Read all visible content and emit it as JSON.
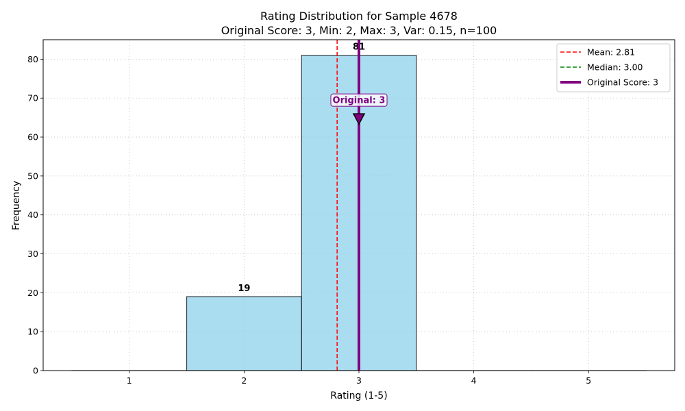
{
  "chart_data": {
    "type": "bar",
    "title": "Rating Distribution for Sample 4678",
    "subtitle": "Original Score: 3, Min: 2, Max: 3, Var: 0.15, n=100",
    "xlabel": "Rating (1-5)",
    "ylabel": "Frequency",
    "categories": [
      1,
      2,
      3,
      4,
      5
    ],
    "values": [
      0,
      19,
      81,
      0,
      0
    ],
    "bar_labels": [
      "",
      "19",
      "81",
      "",
      ""
    ],
    "xlim": [
      0.25,
      5.75
    ],
    "ylim": [
      0,
      85
    ],
    "xticks": [
      "1",
      "2",
      "3",
      "4",
      "5"
    ],
    "yticks": [
      "0",
      "10",
      "20",
      "30",
      "40",
      "50",
      "60",
      "70",
      "80"
    ],
    "grid": true,
    "legend_position": "top-right",
    "mean": 2.81,
    "median": 3.0,
    "original_score": 3,
    "annotation": {
      "text": "Original: 3",
      "y": 63.5
    },
    "legend": [
      {
        "label": "Mean: 2.81",
        "style": "dashed",
        "color": "#ff0000"
      },
      {
        "label": "Median: 3.00",
        "style": "dashed",
        "color": "#008000"
      },
      {
        "label": "Original Score: 3",
        "style": "solid",
        "color": "#800080"
      }
    ],
    "colors": {
      "bar_fill": "#87ceeb",
      "bar_edge": "#000000",
      "mean_line": "#ff0000",
      "median_line": "#008000",
      "original_line": "#800080",
      "annotation_bg": "#ffffff",
      "annotation_border": "#800080"
    }
  }
}
